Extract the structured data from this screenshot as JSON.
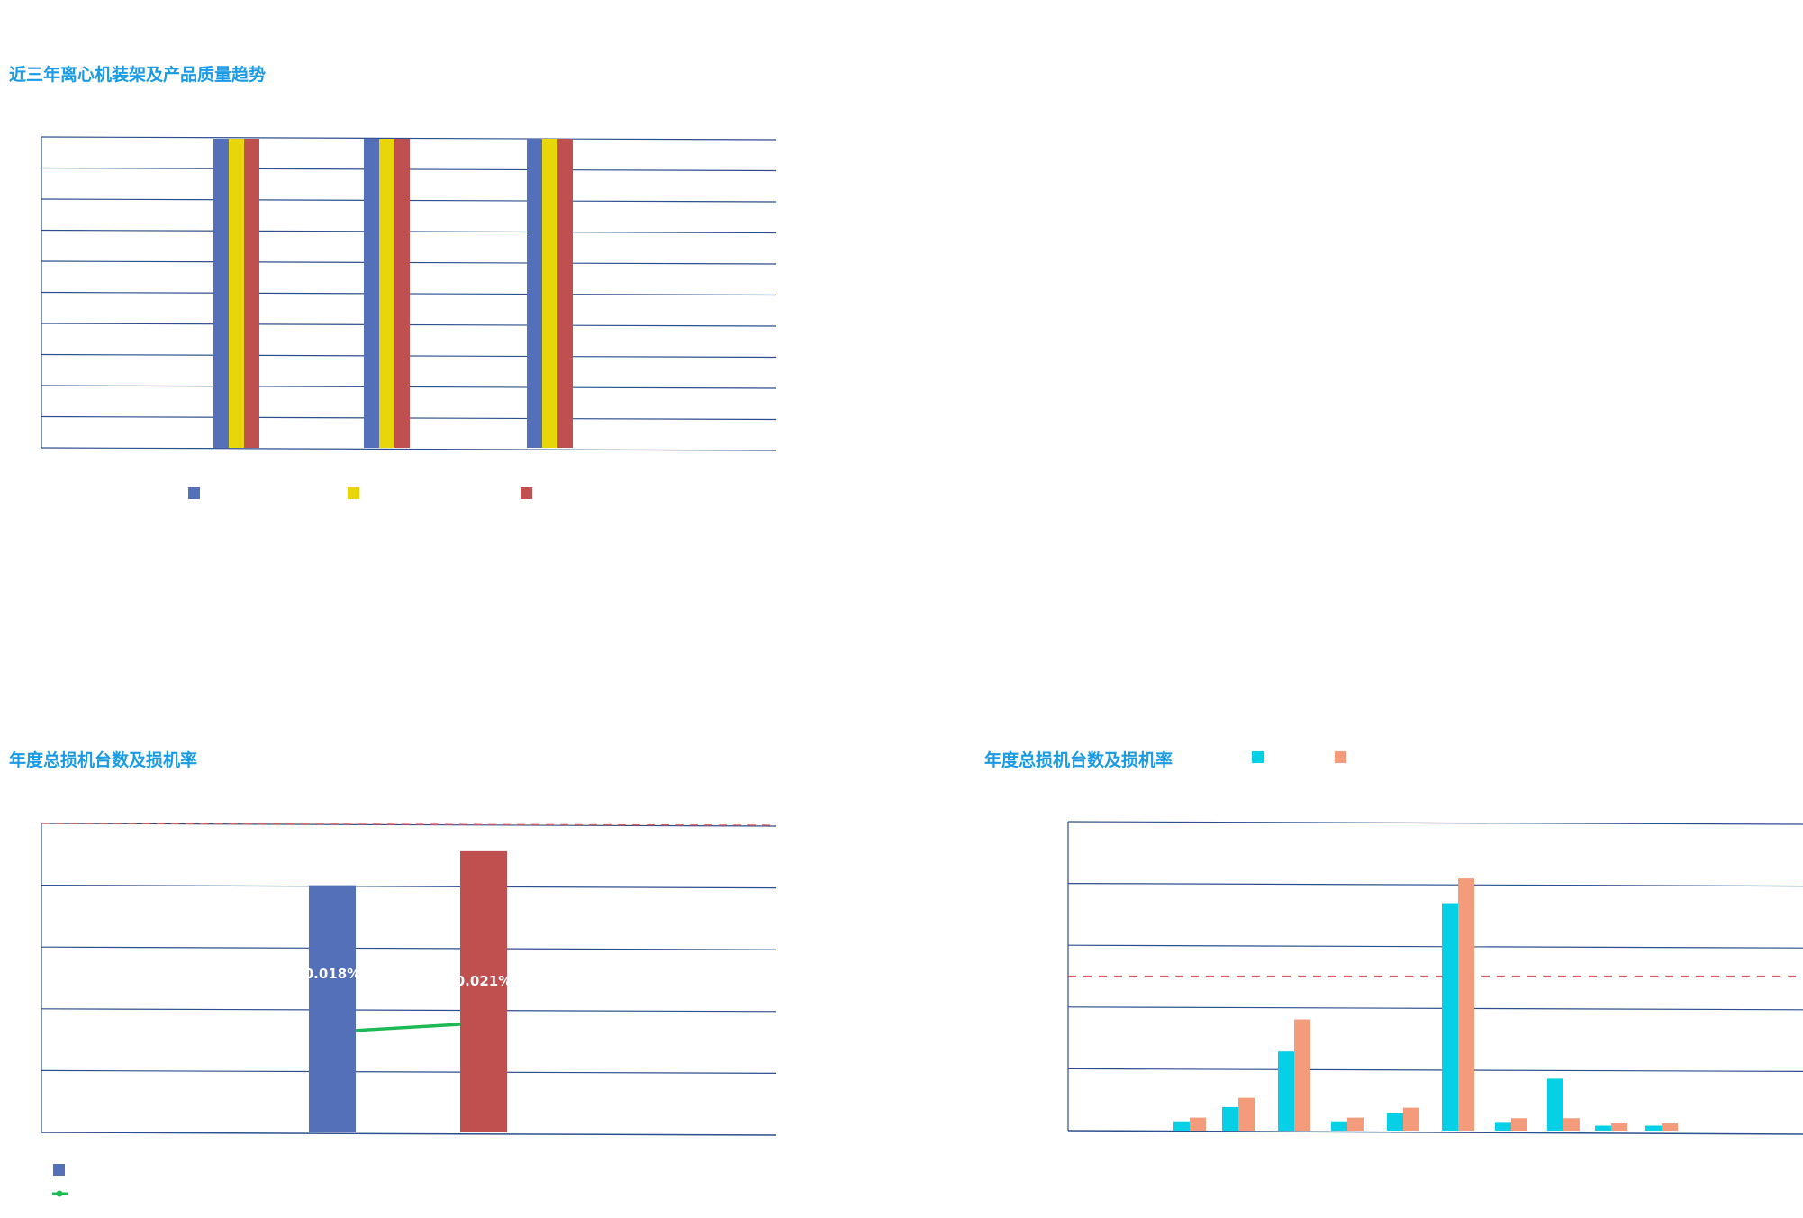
{
  "colors": {
    "title": "#1a9be6",
    "axis": "#2d4f8e",
    "blue": "#5470b8",
    "yellow": "#e8d60a",
    "red": "#c04f4f",
    "cyan": "#06d0e6",
    "orange": "#f39b7a",
    "green": "#1db954",
    "dashed": "#d95c5c"
  },
  "chart_data": [
    {
      "type": "bar",
      "title": "近三年离心机装架及产品质量趋势",
      "grid": true,
      "ylim": [
        0,
        10
      ],
      "legend": "bottom",
      "categories": [
        "",
        "",
        ""
      ],
      "series": [
        {
          "color": "#5470b8",
          "values": [
            10,
            10,
            10
          ]
        },
        {
          "color": "#e8d60a",
          "values": [
            10,
            10,
            10
          ]
        },
        {
          "color": "#c04f4f",
          "values": [
            10,
            10,
            10
          ]
        }
      ]
    },
    {
      "type": "bar",
      "title": "年度总损机台数及损机率",
      "grid": true,
      "ylim": [
        0,
        5
      ],
      "legend": "bottom-left",
      "categories": [
        "",
        ""
      ],
      "bars": {
        "colors": [
          "#5470b8",
          "#c04f4f"
        ],
        "values": [
          4.0,
          4.55
        ],
        "labels": [
          "0.018%",
          "0.021%"
        ]
      },
      "line": {
        "color": "#1db954",
        "values": [
          1.65,
          1.75
        ]
      },
      "reference_line": 5.0
    },
    {
      "type": "bar",
      "title": "年度总损机台数及损机率",
      "grid": true,
      "ylim": [
        0,
        5
      ],
      "legend": "top",
      "categories": [
        "",
        "",
        "",
        "",
        "",
        "",
        "",
        "",
        "",
        ""
      ],
      "series": [
        {
          "color": "#06d0e6",
          "values": [
            0.15,
            0.38,
            1.28,
            0.15,
            0.28,
            3.68,
            0.14,
            0.84,
            0.08,
            0.08
          ]
        },
        {
          "color": "#f39b7a",
          "values": [
            0.21,
            0.53,
            1.8,
            0.21,
            0.37,
            4.08,
            0.2,
            0.2,
            0.12,
            0.12
          ]
        }
      ],
      "reference_line": 2.5
    }
  ]
}
